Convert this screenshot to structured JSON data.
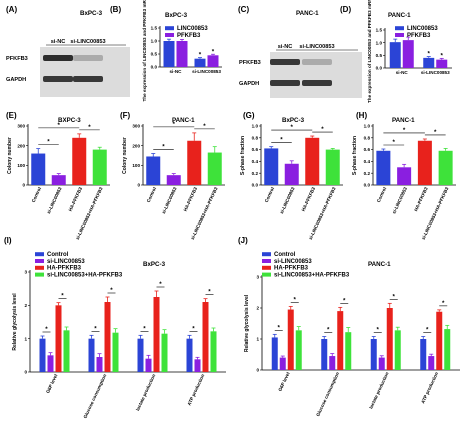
{
  "colors": {
    "control": "#2b44d6",
    "si_linc": "#8a1fe0",
    "ha_pfkfb3": "#e8221c",
    "combo": "#3ee23a",
    "text": "#000000"
  },
  "blots": [
    {
      "panel": "(A)",
      "title": "BxPC-3",
      "lanes": [
        "si-NC",
        "si-LINC00853"
      ],
      "rows": [
        "PFKFB3",
        "GAPDH"
      ],
      "row_intensity": [
        [
          0.85,
          0.3
        ],
        [
          0.8,
          0.8
        ]
      ]
    },
    {
      "panel": "(C)",
      "title": "PANC-1",
      "lanes": [
        "si-NC",
        "si-LINC00853"
      ],
      "rows": [
        "PFKFB3",
        "GAPDH"
      ],
      "row_intensity": [
        [
          0.8,
          0.3
        ],
        [
          0.8,
          0.8
        ]
      ]
    }
  ],
  "chart_data": [
    {
      "panel": "(B)",
      "title": "BxPC-3",
      "type": "bar",
      "categories": [
        "si-NC",
        "si-LINC00853"
      ],
      "series": [
        {
          "name": "LINC00853",
          "values": [
            1.0,
            0.32
          ],
          "errors": [
            0.07,
            0.04
          ],
          "color": "#2b44d6"
        },
        {
          "name": "PFKFB3",
          "values": [
            1.0,
            0.45
          ],
          "errors": [
            0.06,
            0.04
          ],
          "color": "#8a1fe0"
        }
      ],
      "ylabel": "The expression of LINC00853 and PFKFB3 mRNA",
      "ylim": [
        0,
        1.5
      ],
      "yticks": [
        "0.0",
        "0.5",
        "1.0",
        "1.5"
      ],
      "annotations": [
        "*",
        "*"
      ]
    },
    {
      "panel": "(D)",
      "title": "PANC-1",
      "type": "bar",
      "categories": [
        "si-NC",
        "si-LINC00853"
      ],
      "series": [
        {
          "name": "LINC00853",
          "values": [
            1.02,
            0.4
          ],
          "errors": [
            0.12,
            0.05
          ],
          "color": "#2b44d6"
        },
        {
          "name": "PFKFB3",
          "values": [
            1.1,
            0.33
          ],
          "errors": [
            0.12,
            0.05
          ],
          "color": "#8a1fe0"
        }
      ],
      "ylabel": "The expression of LINC00853 and PFKFB3 mRNA",
      "ylim": [
        0,
        1.5
      ],
      "yticks": [
        "0.0",
        "0.5",
        "1.0",
        "1.5"
      ],
      "annotations": [
        "*",
        "*"
      ]
    },
    {
      "panel": "(E)",
      "title": "BXPC-3",
      "type": "bar",
      "categories": [
        "Control",
        "si-LINC00853",
        "HA-PFKFB3",
        "si-LINC00853+HA-PFKFB3"
      ],
      "values": [
        160,
        50,
        240,
        180
      ],
      "errors": [
        25,
        8,
        20,
        12
      ],
      "ylabel": "Colony number",
      "ylim": [
        0,
        300
      ],
      "yticks": [
        "0",
        "100",
        "200",
        "300"
      ],
      "annotations": [
        "*",
        "*",
        "*"
      ]
    },
    {
      "panel": "(F)",
      "title": "PANC-1",
      "type": "bar",
      "categories": [
        "Control",
        "si-LINC00853",
        "HA-PFKFB3",
        "si-LINC00853+HA-PFKFB3"
      ],
      "values": [
        145,
        50,
        225,
        165
      ],
      "errors": [
        15,
        8,
        40,
        30
      ],
      "ylabel": "Colony number",
      "ylim": [
        0,
        300
      ],
      "yticks": [
        "0",
        "100",
        "200",
        "300"
      ],
      "annotations": [
        "*",
        "*",
        "*"
      ]
    },
    {
      "panel": "(G)",
      "title": "BxPC-3",
      "type": "bar",
      "categories": [
        "Control",
        "si-LINC00853",
        "HA-PFKFB3",
        "si-LINC00853+HA-PFKFB3"
      ],
      "values": [
        0.62,
        0.36,
        0.8,
        0.6
      ],
      "errors": [
        0.03,
        0.05,
        0.03,
        0.02
      ],
      "ylabel": "S-phase fraction",
      "ylim": [
        0,
        1.0
      ],
      "yticks": [
        "0.0",
        "0.2",
        "0.4",
        "0.6",
        "0.8",
        "1.0"
      ],
      "annotations": [
        "*",
        "*",
        "*"
      ]
    },
    {
      "panel": "(H)",
      "title": "PANC-1",
      "type": "bar",
      "categories": [
        "Control",
        "si-LINC00853",
        "HA-PFKFB3",
        "si-LINC00853+HA-PFKFB3"
      ],
      "values": [
        0.58,
        0.3,
        0.75,
        0.58
      ],
      "errors": [
        0.03,
        0.05,
        0.03,
        0.04
      ],
      "ylabel": "S-phase fraction",
      "ylim": [
        0,
        1.0
      ],
      "yticks": [
        "0.0",
        "0.2",
        "0.4",
        "0.6",
        "0.8",
        "1.0"
      ],
      "annotations": [
        "*",
        "*",
        "*"
      ]
    },
    {
      "panel": "(I)",
      "title": "BxPC-3",
      "type": "bar",
      "categories": [
        "G6P level",
        "Glucose consumption",
        "lactate production",
        "ATP production"
      ],
      "series": [
        {
          "name": "Control",
          "values": [
            1.0,
            1.0,
            1.0,
            1.0
          ],
          "errors": [
            0.08,
            0.1,
            0.1,
            0.1
          ],
          "color": "#2b44d6"
        },
        {
          "name": "si-LINC00853",
          "values": [
            0.5,
            0.45,
            0.4,
            0.38
          ],
          "errors": [
            0.08,
            0.1,
            0.1,
            0.06
          ],
          "color": "#8a1fe0"
        },
        {
          "name": "HA-PFKFB3",
          "values": [
            2.0,
            2.1,
            2.25,
            2.1
          ],
          "errors": [
            0.08,
            0.15,
            0.18,
            0.1
          ],
          "color": "#e8221c"
        },
        {
          "name": "si-LINC00853+HA-PFKFB3",
          "values": [
            1.25,
            1.18,
            1.15,
            1.22
          ],
          "errors": [
            0.1,
            0.12,
            0.12,
            0.1
          ],
          "color": "#3ee23a"
        }
      ],
      "ylabel": "Relative glycolysis level",
      "ylim": [
        0,
        3
      ],
      "yticks": [
        "0",
        "1",
        "2",
        "3"
      ],
      "annotations": [
        "*",
        "*",
        "*",
        "*",
        "*",
        "*",
        "*",
        "*"
      ]
    },
    {
      "panel": "(J)",
      "title": "PANC-1",
      "type": "bar",
      "categories": [
        "G6P level",
        "Glucose consumption",
        "lactate production",
        "ATP production"
      ],
      "series": [
        {
          "name": "Control",
          "values": [
            1.05,
            1.0,
            1.0,
            1.0
          ],
          "errors": [
            0.1,
            0.08,
            0.08,
            0.08
          ],
          "color": "#2b44d6"
        },
        {
          "name": "si-LINC00853",
          "values": [
            0.4,
            0.45,
            0.4,
            0.45
          ],
          "errors": [
            0.05,
            0.08,
            0.06,
            0.06
          ],
          "color": "#8a1fe0"
        },
        {
          "name": "HA-PFKFB3",
          "values": [
            1.95,
            1.9,
            2.0,
            1.88
          ],
          "errors": [
            0.1,
            0.12,
            0.15,
            0.06
          ],
          "color": "#e8221c"
        },
        {
          "name": "si-LINC00853+HA-PFKFB3",
          "values": [
            1.28,
            1.22,
            1.28,
            1.32
          ],
          "errors": [
            0.12,
            0.15,
            0.1,
            0.12
          ],
          "color": "#3ee23a"
        }
      ],
      "ylabel": "Relative glycolysis level",
      "ylim": [
        0,
        3
      ],
      "yticks": [
        "0",
        "1",
        "2",
        "3"
      ],
      "annotations": [
        "*",
        "*",
        "*",
        "*",
        "*",
        "*",
        "*",
        "*"
      ]
    }
  ]
}
